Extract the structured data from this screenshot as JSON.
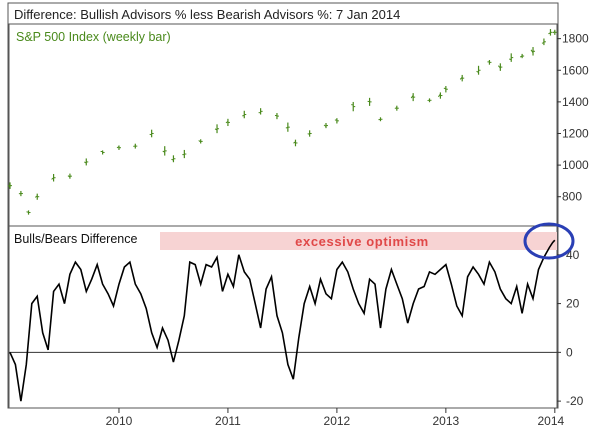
{
  "header": {
    "title": "Difference: Bullish Advisors % less Bearish Advisors %: 7 Jan 2014"
  },
  "colors": {
    "price": "#4a8a1c",
    "diff": "#000000",
    "band": "#f7d3d3",
    "band_text": "#e04848",
    "circle": "#2a3fb5",
    "axis": "#333333",
    "grid": "#dddddd"
  },
  "chart_data": [
    {
      "type": "bar",
      "title": "S&P 500 Index (weekly bar)",
      "ylim": [
        640,
        1880
      ],
      "yticks": [
        800,
        1000,
        1200,
        1400,
        1600,
        1800
      ],
      "x": [
        2009.0,
        2009.1,
        2009.17,
        2009.25,
        2009.4,
        2009.55,
        2009.7,
        2009.85,
        2010.0,
        2010.15,
        2010.3,
        2010.42,
        2010.5,
        2010.6,
        2010.75,
        2010.9,
        2011.0,
        2011.15,
        2011.3,
        2011.45,
        2011.55,
        2011.62,
        2011.75,
        2011.9,
        2012.0,
        2012.15,
        2012.3,
        2012.4,
        2012.55,
        2012.7,
        2012.85,
        2012.95,
        2013.0,
        2013.15,
        2013.3,
        2013.4,
        2013.5,
        2013.6,
        2013.7,
        2013.8,
        2013.9,
        2013.96,
        2014.0
      ],
      "values": [
        870,
        820,
        700,
        800,
        920,
        930,
        1020,
        1080,
        1110,
        1120,
        1200,
        1090,
        1040,
        1070,
        1150,
        1230,
        1270,
        1320,
        1340,
        1310,
        1240,
        1140,
        1200,
        1250,
        1280,
        1370,
        1400,
        1290,
        1360,
        1430,
        1410,
        1440,
        1480,
        1550,
        1600,
        1650,
        1620,
        1680,
        1690,
        1720,
        1780,
        1840,
        1840
      ]
    },
    {
      "type": "line",
      "title": "Bulls/Bears Difference",
      "annotation": "excessive optimism",
      "ylim": [
        -22,
        51
      ],
      "yticks": [
        -20,
        0,
        20,
        40
      ],
      "xticks": [
        2010,
        2011,
        2012,
        2013,
        2014
      ],
      "x": [
        2009.0,
        2009.05,
        2009.1,
        2009.15,
        2009.2,
        2009.25,
        2009.3,
        2009.35,
        2009.4,
        2009.45,
        2009.5,
        2009.55,
        2009.6,
        2009.65,
        2009.7,
        2009.75,
        2009.8,
        2009.85,
        2009.9,
        2009.95,
        2010.0,
        2010.05,
        2010.1,
        2010.15,
        2010.2,
        2010.25,
        2010.3,
        2010.35,
        2010.4,
        2010.45,
        2010.5,
        2010.55,
        2010.6,
        2010.65,
        2010.7,
        2010.75,
        2010.8,
        2010.85,
        2010.9,
        2010.95,
        2011.0,
        2011.05,
        2011.1,
        2011.15,
        2011.2,
        2011.25,
        2011.3,
        2011.35,
        2011.4,
        2011.45,
        2011.5,
        2011.55,
        2011.6,
        2011.65,
        2011.7,
        2011.75,
        2011.8,
        2011.85,
        2011.9,
        2011.95,
        2012.0,
        2012.05,
        2012.1,
        2012.15,
        2012.2,
        2012.25,
        2012.3,
        2012.35,
        2012.4,
        2012.45,
        2012.5,
        2012.55,
        2012.6,
        2012.65,
        2012.7,
        2012.75,
        2012.8,
        2012.85,
        2012.9,
        2012.95,
        2013.0,
        2013.05,
        2013.1,
        2013.15,
        2013.2,
        2013.25,
        2013.3,
        2013.35,
        2013.4,
        2013.45,
        2013.5,
        2013.55,
        2013.6,
        2013.65,
        2013.7,
        2013.75,
        2013.8,
        2013.85,
        2013.9,
        2013.95,
        2013.98,
        2014.0
      ],
      "values": [
        0,
        -5,
        -20,
        -5,
        20,
        23,
        8,
        1,
        25,
        28,
        20,
        32,
        37,
        34,
        25,
        30,
        36,
        28,
        24,
        19,
        28,
        35,
        37,
        28,
        24,
        18,
        8,
        2,
        10,
        5,
        -4,
        5,
        15,
        37,
        36,
        28,
        36,
        35,
        39,
        25,
        32,
        27,
        40,
        33,
        30,
        20,
        10,
        26,
        31,
        15,
        8,
        -5,
        -11,
        6,
        20,
        27,
        20,
        30,
        24,
        22,
        34,
        37,
        33,
        26,
        20,
        16,
        30,
        28,
        10,
        26,
        34,
        28,
        22,
        12,
        20,
        26,
        27,
        33,
        32,
        34,
        36,
        28,
        19,
        15,
        31,
        35,
        32,
        28,
        37,
        33,
        26,
        22,
        20,
        27,
        16,
        28,
        22,
        34,
        39,
        43,
        45,
        46
      ]
    }
  ]
}
